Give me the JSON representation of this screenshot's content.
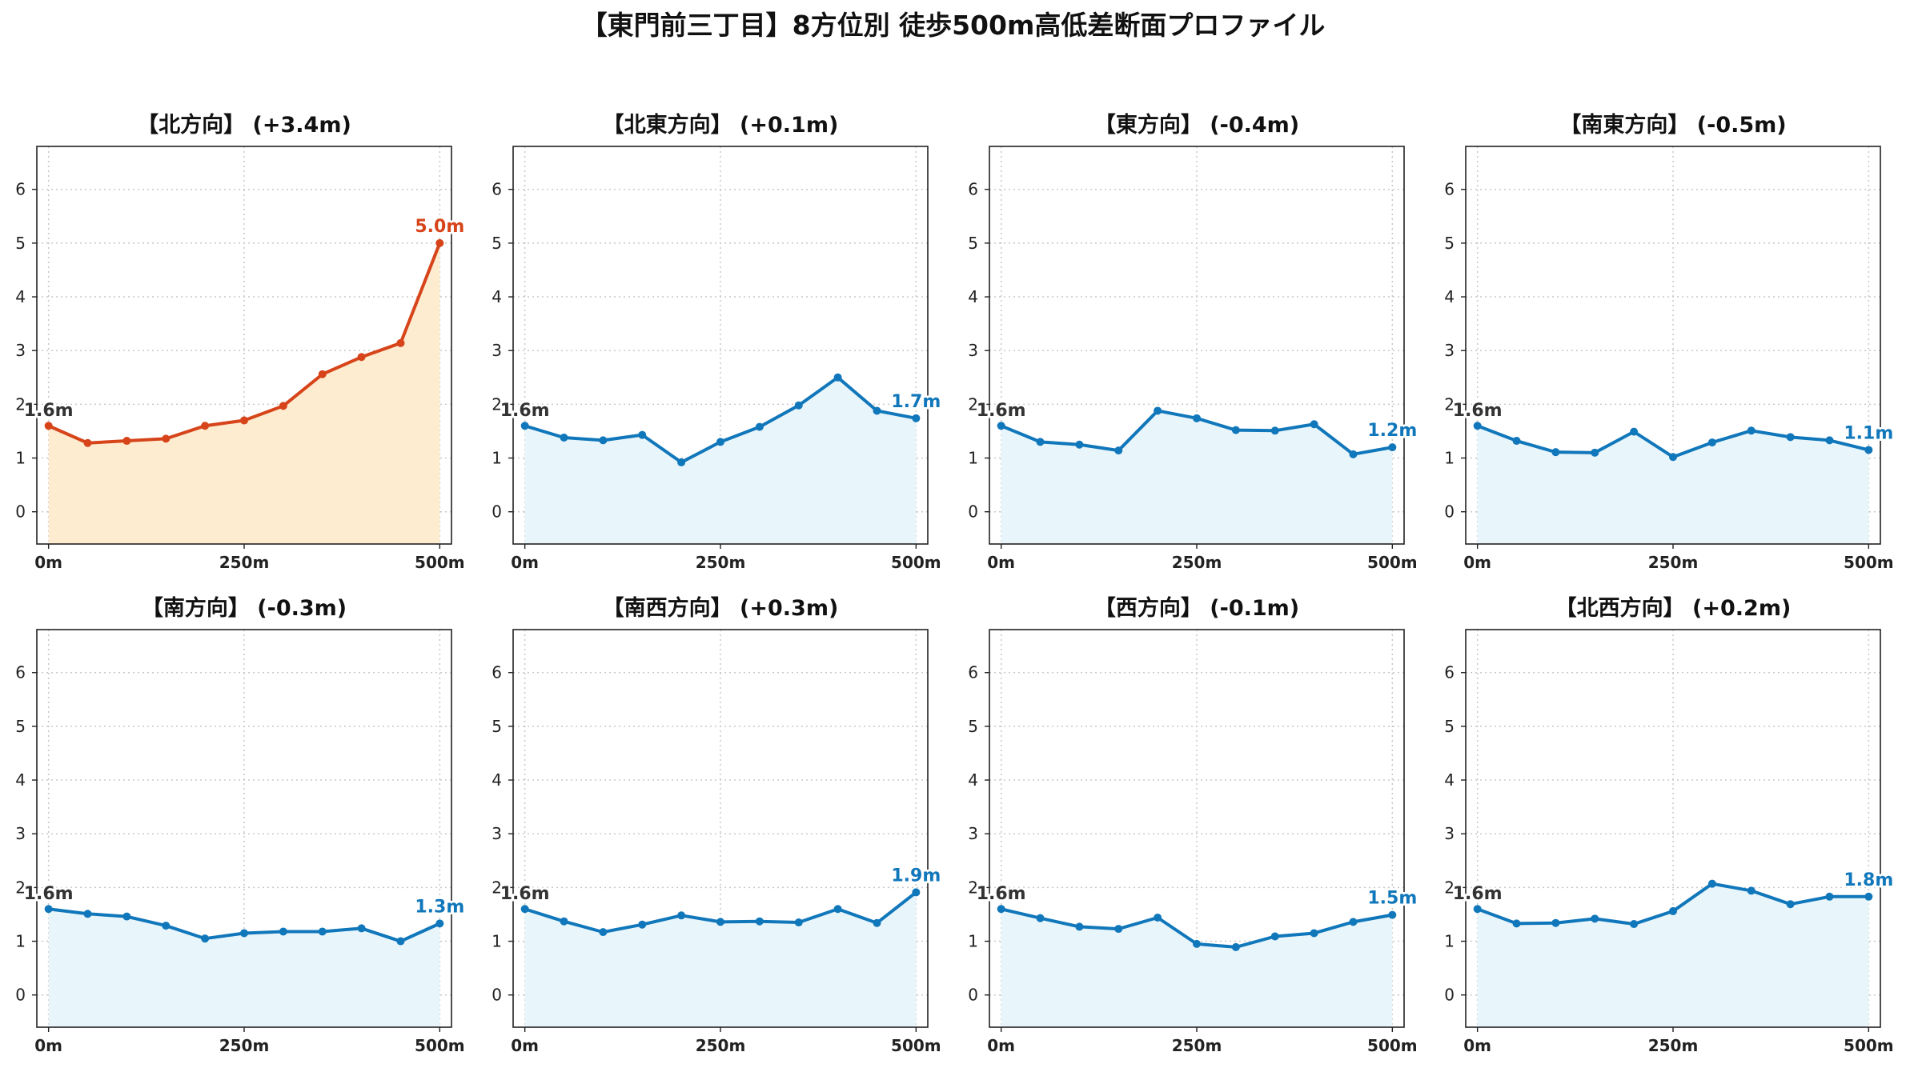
{
  "title": "【東門前三丁目】8方位別 徒歩500m高低差断面プロファイル",
  "colors": {
    "up_line": "#d7441a",
    "up_fill": "#fdecd0",
    "flat_line": "#1177bb",
    "flat_fill": "#e8f5fb",
    "start_label": "#333333",
    "grid": "#c8c8c8"
  },
  "chart_data": [
    {
      "type": "area",
      "title": "【北方向】 (+3.4m)",
      "x": [
        0,
        50,
        100,
        150,
        200,
        250,
        300,
        350,
        400,
        450,
        500
      ],
      "xticks": [
        0,
        250,
        500
      ],
      "xtick_labels": [
        "0m",
        "250m",
        "500m"
      ],
      "y": [
        1.6,
        1.28,
        1.32,
        1.36,
        1.6,
        1.7,
        1.97,
        2.56,
        2.88,
        3.14,
        5.0
      ],
      "ylim": [
        -0.6,
        6.8
      ],
      "yticks": [
        0,
        1,
        2,
        3,
        4,
        5,
        6
      ],
      "start_label": "1.6m",
      "end_label": "5.0m",
      "style": "up",
      "grid": true
    },
    {
      "type": "area",
      "title": "【北東方向】 (+0.1m)",
      "x": [
        0,
        50,
        100,
        150,
        200,
        250,
        300,
        350,
        400,
        450,
        500
      ],
      "xticks": [
        0,
        250,
        500
      ],
      "xtick_labels": [
        "0m",
        "250m",
        "500m"
      ],
      "y": [
        1.6,
        1.38,
        1.33,
        1.43,
        0.92,
        1.3,
        1.58,
        1.98,
        2.5,
        1.88,
        1.74
      ],
      "ylim": [
        -0.6,
        6.8
      ],
      "yticks": [
        0,
        1,
        2,
        3,
        4,
        5,
        6
      ],
      "start_label": "1.6m",
      "end_label": "1.7m",
      "style": "flat",
      "grid": true
    },
    {
      "type": "area",
      "title": "【東方向】 (-0.4m)",
      "x": [
        0,
        50,
        100,
        150,
        200,
        250,
        300,
        350,
        400,
        450,
        500
      ],
      "xticks": [
        0,
        250,
        500
      ],
      "xtick_labels": [
        "0m",
        "250m",
        "500m"
      ],
      "y": [
        1.6,
        1.3,
        1.25,
        1.14,
        1.88,
        1.74,
        1.52,
        1.51,
        1.63,
        1.07,
        1.2
      ],
      "ylim": [
        -0.6,
        6.8
      ],
      "yticks": [
        0,
        1,
        2,
        3,
        4,
        5,
        6
      ],
      "start_label": "1.6m",
      "end_label": "1.2m",
      "style": "flat",
      "grid": true
    },
    {
      "type": "area",
      "title": "【南東方向】 (-0.5m)",
      "x": [
        0,
        50,
        100,
        150,
        200,
        250,
        300,
        350,
        400,
        450,
        500
      ],
      "xticks": [
        0,
        250,
        500
      ],
      "xtick_labels": [
        "0m",
        "250m",
        "500m"
      ],
      "y": [
        1.6,
        1.32,
        1.11,
        1.1,
        1.49,
        1.02,
        1.29,
        1.51,
        1.39,
        1.33,
        1.15
      ],
      "ylim": [
        -0.6,
        6.8
      ],
      "yticks": [
        0,
        1,
        2,
        3,
        4,
        5,
        6
      ],
      "start_label": "1.6m",
      "end_label": "1.1m",
      "style": "flat",
      "grid": true
    },
    {
      "type": "area",
      "title": "【南方向】 (-0.3m)",
      "x": [
        0,
        50,
        100,
        150,
        200,
        250,
        300,
        350,
        400,
        450,
        500
      ],
      "xticks": [
        0,
        250,
        500
      ],
      "xtick_labels": [
        "0m",
        "250m",
        "500m"
      ],
      "y": [
        1.6,
        1.51,
        1.46,
        1.29,
        1.05,
        1.15,
        1.18,
        1.18,
        1.24,
        1.0,
        1.33
      ],
      "ylim": [
        -0.6,
        6.8
      ],
      "yticks": [
        0,
        1,
        2,
        3,
        4,
        5,
        6
      ],
      "start_label": "1.6m",
      "end_label": "1.3m",
      "style": "flat",
      "grid": true
    },
    {
      "type": "area",
      "title": "【南西方向】 (+0.3m)",
      "x": [
        0,
        50,
        100,
        150,
        200,
        250,
        300,
        350,
        400,
        450,
        500
      ],
      "xticks": [
        0,
        250,
        500
      ],
      "xtick_labels": [
        "0m",
        "250m",
        "500m"
      ],
      "y": [
        1.6,
        1.37,
        1.17,
        1.31,
        1.48,
        1.36,
        1.37,
        1.35,
        1.6,
        1.34,
        1.91
      ],
      "ylim": [
        -0.6,
        6.8
      ],
      "yticks": [
        0,
        1,
        2,
        3,
        4,
        5,
        6
      ],
      "start_label": "1.6m",
      "end_label": "1.9m",
      "style": "flat",
      "grid": true
    },
    {
      "type": "area",
      "title": "【西方向】 (-0.1m)",
      "x": [
        0,
        50,
        100,
        150,
        200,
        250,
        300,
        350,
        400,
        450,
        500
      ],
      "xticks": [
        0,
        250,
        500
      ],
      "xtick_labels": [
        "0m",
        "250m",
        "500m"
      ],
      "y": [
        1.6,
        1.43,
        1.27,
        1.23,
        1.44,
        0.95,
        0.89,
        1.09,
        1.15,
        1.36,
        1.49
      ],
      "ylim": [
        -0.6,
        6.8
      ],
      "yticks": [
        0,
        1,
        2,
        3,
        4,
        5,
        6
      ],
      "start_label": "1.6m",
      "end_label": "1.5m",
      "style": "flat",
      "grid": true
    },
    {
      "type": "area",
      "title": "【北西方向】 (+0.2m)",
      "x": [
        0,
        50,
        100,
        150,
        200,
        250,
        300,
        350,
        400,
        450,
        500
      ],
      "xticks": [
        0,
        250,
        500
      ],
      "xtick_labels": [
        "0m",
        "250m",
        "500m"
      ],
      "y": [
        1.6,
        1.33,
        1.34,
        1.42,
        1.32,
        1.56,
        2.07,
        1.94,
        1.69,
        1.83,
        1.83
      ],
      "ylim": [
        -0.6,
        6.8
      ],
      "yticks": [
        0,
        1,
        2,
        3,
        4,
        5,
        6
      ],
      "start_label": "1.6m",
      "end_label": "1.8m",
      "style": "flat",
      "grid": true
    }
  ]
}
